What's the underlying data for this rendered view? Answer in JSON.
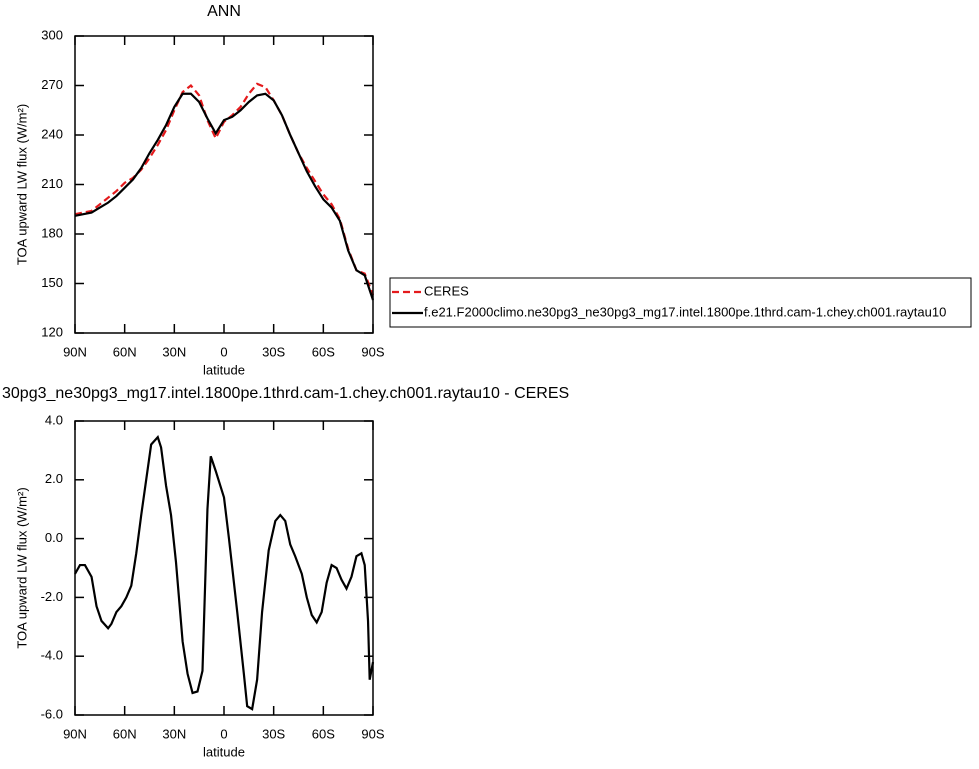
{
  "chart_data": [
    {
      "type": "line",
      "title": "ANN",
      "x_label": "latitude",
      "y_label": "TOA upward LW flux (W/m²)",
      "xlim": [
        90,
        -90
      ],
      "xticks": [
        {
          "value": 90,
          "label": "90N"
        },
        {
          "value": 60,
          "label": "60N"
        },
        {
          "value": 30,
          "label": "30N"
        },
        0,
        {
          "value": -30,
          "label": "30S"
        },
        {
          "value": -60,
          "label": "60S"
        },
        {
          "value": -90,
          "label": "90S"
        }
      ],
      "ylim": [
        120,
        300
      ],
      "yticks": [
        120,
        150,
        180,
        210,
        240,
        270,
        300
      ],
      "legend": "right",
      "x": [
        90,
        85,
        80,
        75,
        70,
        65,
        60,
        55,
        50,
        45,
        40,
        35,
        30,
        25,
        20,
        15,
        10,
        5,
        0,
        -5,
        -10,
        -15,
        -20,
        -25,
        -30,
        -35,
        -40,
        -45,
        -50,
        -55,
        -60,
        -65,
        -70,
        -75,
        -80,
        -85,
        -90
      ],
      "series": [
        {
          "name": "CERES",
          "color": "#e41a1c",
          "line_style": "dashed",
          "values": [
            192,
            193,
            194,
            198,
            202,
            206,
            211,
            214,
            219,
            226,
            234,
            243,
            255,
            266,
            270,
            264,
            249,
            238,
            248,
            252,
            257,
            265,
            271,
            269,
            261,
            252,
            240,
            229,
            220,
            212,
            204,
            198,
            189,
            171,
            158,
            156,
            143
          ]
        },
        {
          "name": "f.e21.F2000climo.ne30pg3_ne30pg3_mg17.intel.1800pe.1thrd.cam-1.chey.ch001.raytau10",
          "color": "#000000",
          "line_style": "solid",
          "values": [
            191,
            192,
            193,
            196,
            199,
            203,
            208,
            213,
            220,
            229,
            237,
            246,
            257,
            265,
            265,
            260,
            250,
            241,
            249,
            251,
            255,
            260,
            264,
            265,
            261,
            252,
            240,
            229,
            218,
            209,
            201,
            196,
            188,
            170,
            158,
            155,
            140
          ]
        }
      ]
    },
    {
      "type": "line",
      "title": "30pg3_ne30pg3_mg17.intel.1800pe.1thrd.cam-1.chey.ch001.raytau10 - CERES",
      "x_label": "latitude",
      "y_label": "TOA upward LW flux (W/m²)",
      "xlim": [
        90,
        -90
      ],
      "xticks": [
        {
          "value": 90,
          "label": "90N"
        },
        {
          "value": 60,
          "label": "60N"
        },
        {
          "value": 30,
          "label": "30N"
        },
        0,
        {
          "value": -30,
          "label": "30S"
        },
        {
          "value": -60,
          "label": "60S"
        },
        {
          "value": -90,
          "label": "90S"
        }
      ],
      "ylim": [
        -6,
        4
      ],
      "yticks": [
        {
          "value": -6,
          "label": "-6.0"
        },
        {
          "value": -4,
          "label": "-4.0"
        },
        {
          "value": -2,
          "label": "-2.0"
        },
        {
          "value": 0,
          "label": "0.0"
        },
        {
          "value": 2,
          "label": "2.0"
        },
        {
          "value": 4,
          "label": "4.0"
        }
      ],
      "x": [
        90,
        87,
        84,
        80,
        77,
        74,
        70,
        68,
        65,
        62,
        59,
        56,
        53,
        50,
        47,
        44,
        40,
        38,
        35,
        32,
        29,
        25,
        22,
        19,
        16,
        13,
        10,
        8,
        5,
        0,
        -3,
        -5,
        -8,
        -12,
        -14,
        -17,
        -20,
        -23,
        -27,
        -31,
        -34,
        -37,
        -40,
        -43,
        -47,
        -50,
        -53,
        -56,
        -59,
        -62,
        -65,
        -68,
        -71,
        -74,
        -77,
        -80,
        -83,
        -85,
        -87,
        -88,
        -90
      ],
      "series": [
        {
          "color": "#000000",
          "line_style": "solid",
          "values": [
            -1.2,
            -0.9,
            -0.9,
            -1.3,
            -2.3,
            -2.8,
            -3.05,
            -2.9,
            -2.5,
            -2.3,
            -2.0,
            -1.6,
            -0.5,
            0.8,
            2.0,
            3.2,
            3.45,
            3.1,
            1.8,
            0.8,
            -0.8,
            -3.5,
            -4.6,
            -5.25,
            -5.2,
            -4.5,
            1.0,
            2.8,
            2.3,
            1.4,
            0.0,
            -1.0,
            -2.5,
            -4.6,
            -5.7,
            -5.8,
            -4.8,
            -2.5,
            -0.4,
            0.6,
            0.8,
            0.6,
            -0.2,
            -0.6,
            -1.2,
            -2.0,
            -2.6,
            -2.85,
            -2.5,
            -1.5,
            -0.9,
            -1.0,
            -1.4,
            -1.7,
            -1.3,
            -0.6,
            -0.5,
            -0.9,
            -2.8,
            -4.8,
            -4.2
          ]
        }
      ]
    }
  ]
}
